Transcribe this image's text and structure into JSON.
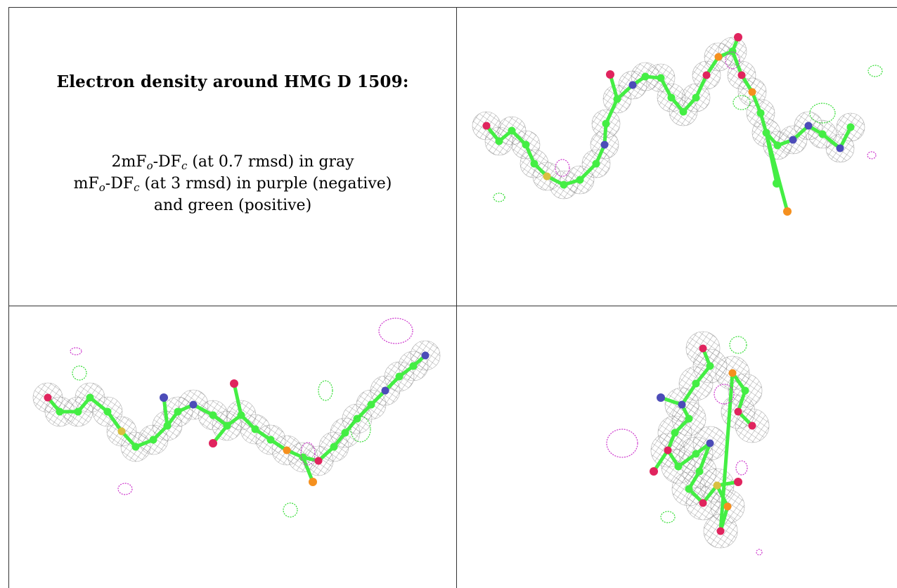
{
  "caption": {
    "title": "Electron density around HMG D 1509:",
    "line1": {
      "prefix": "2mF",
      "sub1": "o",
      "mid": "-DF",
      "sub2": "c",
      "suffix": " (at 0.7 rmsd) in gray"
    },
    "line2": {
      "prefix": "mF",
      "sub1": "o",
      "mid": "-DF",
      "sub2": "c",
      "suffix": " (at 3 rmsd) in purple (negative)"
    },
    "line3": "and green (positive)"
  },
  "colors": {
    "mesh_gray": "#8c8c8c",
    "density_positive": "#33dd33",
    "density_negative": "#cc33cc",
    "carbon": "#44ee44",
    "oxygen": "#e0245e",
    "nitrogen": "#4c4cb8",
    "phosphorus": "#f5901e",
    "sulfur": "#d8c040"
  },
  "panels": [
    {
      "name": "view-top-right"
    },
    {
      "name": "view-bottom-left"
    },
    {
      "name": "view-bottom-right"
    }
  ]
}
